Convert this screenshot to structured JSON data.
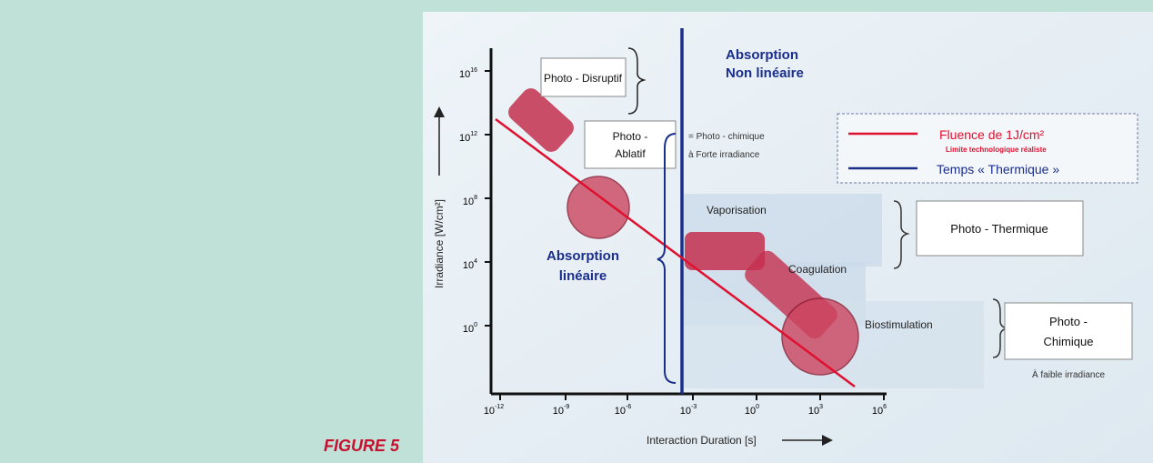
{
  "figure_label": "FIGURE 5",
  "axes": {
    "x_label": "Interaction Duration [s]",
    "y_label": "Irradiance [W/cm²]",
    "x_ticks": [
      {
        "base": "10",
        "exp": "-12"
      },
      {
        "base": "10",
        "exp": "-9"
      },
      {
        "base": "10",
        "exp": "-6"
      },
      {
        "base": "10",
        "exp": "-3"
      },
      {
        "base": "10",
        "exp": "0"
      },
      {
        "base": "10",
        "exp": "3"
      },
      {
        "base": "10",
        "exp": "6"
      }
    ],
    "y_ticks": [
      {
        "base": "10",
        "exp": "16"
      },
      {
        "base": "10",
        "exp": "12"
      },
      {
        "base": "10",
        "exp": "8"
      },
      {
        "base": "10",
        "exp": "4"
      },
      {
        "base": "10",
        "exp": "0"
      }
    ]
  },
  "regions": {
    "photo_disruptif": "Photo - Disruptif",
    "photo_ablatif_1": "Photo -",
    "photo_ablatif_2": "Ablatif",
    "absorption_nonlin_1": "Absorption",
    "absorption_nonlin_2": "Non linéaire",
    "absorption_lin_1": "Absorption",
    "absorption_lin_2": "linéaire",
    "photochim_forte_1": "= Photo - chimique",
    "photochim_forte_2": "à Forte irradiance",
    "vaporisation": "Vaporisation",
    "coagulation": "Coagulation",
    "biostimulation": "Biostimulation",
    "photo_thermique": "Photo - Thermique",
    "photo_chimique_1": "Photo -",
    "photo_chimique_2": "Chimique",
    "faible_irradiance": "À faible irradiance"
  },
  "legend": {
    "fluence_label": "Fluence de 1J/cm²",
    "fluence_sub": "Limite technologique réaliste",
    "temps_label": "Temps « Thermique »",
    "fluence_color": "#e0102f",
    "temps_color": "#1a2e8c"
  }
}
